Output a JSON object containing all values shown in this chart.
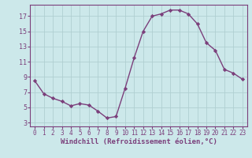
{
  "x": [
    0,
    1,
    2,
    3,
    4,
    5,
    6,
    7,
    8,
    9,
    10,
    11,
    12,
    13,
    14,
    15,
    16,
    17,
    18,
    19,
    20,
    21,
    22,
    23
  ],
  "y": [
    8.5,
    6.8,
    6.2,
    5.8,
    5.2,
    5.5,
    5.3,
    4.5,
    3.6,
    3.8,
    7.5,
    11.5,
    15.0,
    17.0,
    17.3,
    17.8,
    17.8,
    17.3,
    16.0,
    13.5,
    12.5,
    10.0,
    9.5,
    8.7
  ],
  "line_color": "#7b3f7b",
  "marker": "D",
  "marker_size": 2.2,
  "bg_color": "#cce8ea",
  "grid_color": "#b0cfd1",
  "axis_color": "#7b3f7b",
  "xlabel": "Windchill (Refroidissement éolien,°C)",
  "xlabel_fontsize": 6.5,
  "ylim": [
    2.5,
    18.5
  ],
  "xlim": [
    -0.5,
    23.5
  ],
  "yticks": [
    3,
    5,
    7,
    9,
    11,
    13,
    15,
    17
  ],
  "xticks": [
    0,
    1,
    2,
    3,
    4,
    5,
    6,
    7,
    8,
    9,
    10,
    11,
    12,
    13,
    14,
    15,
    16,
    17,
    18,
    19,
    20,
    21,
    22,
    23
  ],
  "tick_fontsize": 5.5,
  "line_width": 1.0
}
